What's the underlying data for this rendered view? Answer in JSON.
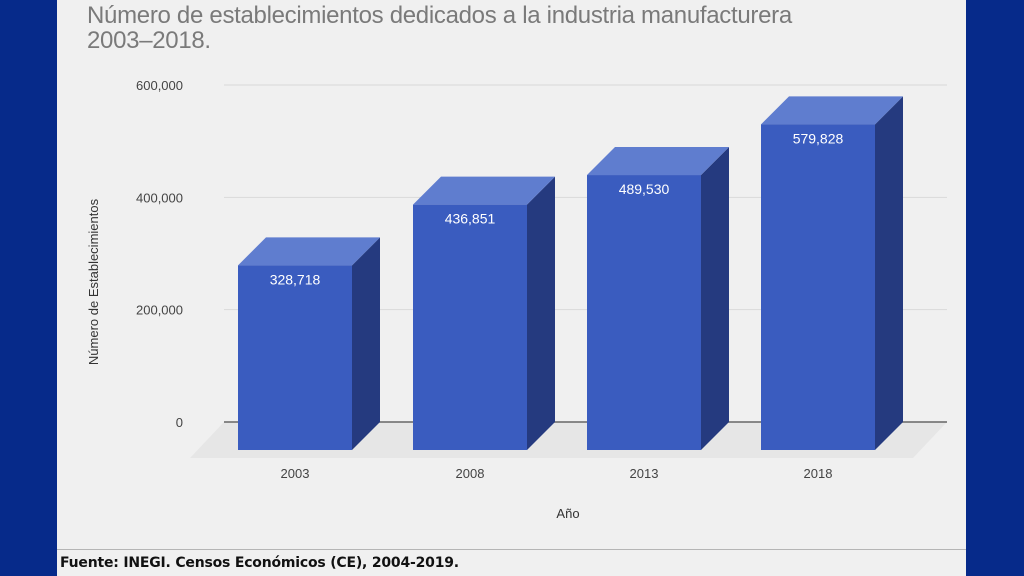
{
  "title_lines": [
    "Número de establecimientos dedicados a la industria manufacturera",
    "2003–2018."
  ],
  "source": "Fuente: INEGI. Censos Económicos (CE), 2004-2019.",
  "colors": {
    "border": "#062a8a",
    "background": "#f0f0f0",
    "bar_front": "#3a5cbf",
    "bar_top": "#5f7dcf",
    "bar_side": "#253a7f",
    "grid": "#d9d9d9",
    "zero_line": "#666666",
    "floor": "#e6e6e6"
  },
  "chart_data": {
    "type": "bar",
    "style": "3d",
    "title": "Número de establecimientos dedicados a la industria manufacturera 2003–2018.",
    "xlabel": "Año",
    "ylabel": "Número de Establecimientos",
    "categories": [
      "2003",
      "2008",
      "2013",
      "2018"
    ],
    "values": [
      328718,
      436851,
      489530,
      579828
    ],
    "data_labels": [
      "328,718",
      "436,851",
      "489,530",
      "579,828"
    ],
    "ylim": [
      0,
      600000
    ],
    "yticks": [
      0,
      200000,
      400000,
      600000
    ],
    "ytick_labels": [
      "0",
      "200,000",
      "400,000",
      "600,000"
    ],
    "grid": true,
    "legend": "none"
  }
}
